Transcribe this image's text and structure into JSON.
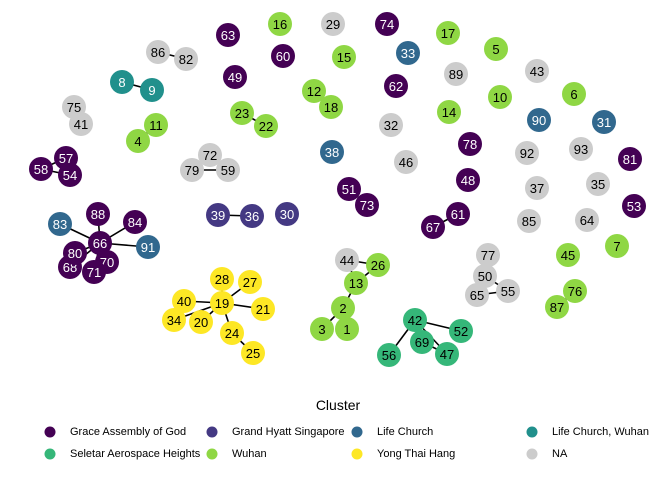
{
  "legend": {
    "title": "Cluster",
    "items": [
      {
        "label": "Grace Assembly of God",
        "color": "#440154"
      },
      {
        "label": "Grand Hyatt Singapore",
        "color": "#443983"
      },
      {
        "label": "Life Church",
        "color": "#31688E"
      },
      {
        "label": "Life Church, Wuhan",
        "color": "#21908C"
      },
      {
        "label": "Seletar Aerospace Heights",
        "color": "#35B779"
      },
      {
        "label": "Wuhan",
        "color": "#8FD744"
      },
      {
        "label": "Yong Thai Hang",
        "color": "#FDE725"
      },
      {
        "label": "NA",
        "color": "#CCCCCC"
      }
    ]
  },
  "nodes": [
    {
      "id": "1",
      "cluster": "Wuhan"
    },
    {
      "id": "2",
      "cluster": "Wuhan"
    },
    {
      "id": "3",
      "cluster": "Wuhan"
    },
    {
      "id": "4",
      "cluster": "Wuhan"
    },
    {
      "id": "5",
      "cluster": "Wuhan"
    },
    {
      "id": "6",
      "cluster": "Wuhan"
    },
    {
      "id": "7",
      "cluster": "Wuhan"
    },
    {
      "id": "8",
      "cluster": "Life Church, Wuhan"
    },
    {
      "id": "9",
      "cluster": "Life Church, Wuhan"
    },
    {
      "id": "10",
      "cluster": "Wuhan"
    },
    {
      "id": "11",
      "cluster": "Wuhan"
    },
    {
      "id": "12",
      "cluster": "Wuhan"
    },
    {
      "id": "13",
      "cluster": "Wuhan"
    },
    {
      "id": "14",
      "cluster": "Wuhan"
    },
    {
      "id": "15",
      "cluster": "Wuhan"
    },
    {
      "id": "16",
      "cluster": "Wuhan"
    },
    {
      "id": "17",
      "cluster": "Wuhan"
    },
    {
      "id": "18",
      "cluster": "Wuhan"
    },
    {
      "id": "19",
      "cluster": "Yong Thai Hang"
    },
    {
      "id": "20",
      "cluster": "Yong Thai Hang"
    },
    {
      "id": "21",
      "cluster": "Yong Thai Hang"
    },
    {
      "id": "22",
      "cluster": "Wuhan"
    },
    {
      "id": "23",
      "cluster": "Wuhan"
    },
    {
      "id": "24",
      "cluster": "Yong Thai Hang"
    },
    {
      "id": "25",
      "cluster": "Yong Thai Hang"
    },
    {
      "id": "26",
      "cluster": "Wuhan"
    },
    {
      "id": "27",
      "cluster": "Yong Thai Hang"
    },
    {
      "id": "28",
      "cluster": "Yong Thai Hang"
    },
    {
      "id": "29",
      "cluster": "NA"
    },
    {
      "id": "30",
      "cluster": "Grand Hyatt Singapore"
    },
    {
      "id": "31",
      "cluster": "Life Church"
    },
    {
      "id": "32",
      "cluster": "NA"
    },
    {
      "id": "33",
      "cluster": "Life Church"
    },
    {
      "id": "34",
      "cluster": "Yong Thai Hang"
    },
    {
      "id": "35",
      "cluster": "NA"
    },
    {
      "id": "36",
      "cluster": "Grand Hyatt Singapore"
    },
    {
      "id": "37",
      "cluster": "NA"
    },
    {
      "id": "38",
      "cluster": "Life Church"
    },
    {
      "id": "39",
      "cluster": "Grand Hyatt Singapore"
    },
    {
      "id": "40",
      "cluster": "Yong Thai Hang"
    },
    {
      "id": "41",
      "cluster": "NA"
    },
    {
      "id": "42",
      "cluster": "Seletar Aerospace Heights"
    },
    {
      "id": "43",
      "cluster": "NA"
    },
    {
      "id": "44",
      "cluster": "NA"
    },
    {
      "id": "45",
      "cluster": "Wuhan"
    },
    {
      "id": "46",
      "cluster": "NA"
    },
    {
      "id": "47",
      "cluster": "Seletar Aerospace Heights"
    },
    {
      "id": "48",
      "cluster": "Grace Assembly of God"
    },
    {
      "id": "49",
      "cluster": "Grace Assembly of God"
    },
    {
      "id": "50",
      "cluster": "NA"
    },
    {
      "id": "51",
      "cluster": "Grace Assembly of God"
    },
    {
      "id": "52",
      "cluster": "Seletar Aerospace Heights"
    },
    {
      "id": "53",
      "cluster": "Grace Assembly of God"
    },
    {
      "id": "54",
      "cluster": "Grace Assembly of God"
    },
    {
      "id": "55",
      "cluster": "NA"
    },
    {
      "id": "56",
      "cluster": "Seletar Aerospace Heights"
    },
    {
      "id": "57",
      "cluster": "Grace Assembly of God"
    },
    {
      "id": "58",
      "cluster": "Grace Assembly of God"
    },
    {
      "id": "59",
      "cluster": "NA"
    },
    {
      "id": "60",
      "cluster": "Grace Assembly of God"
    },
    {
      "id": "61",
      "cluster": "Grace Assembly of God"
    },
    {
      "id": "62",
      "cluster": "Grace Assembly of God"
    },
    {
      "id": "63",
      "cluster": "Grace Assembly of God"
    },
    {
      "id": "64",
      "cluster": "NA"
    },
    {
      "id": "65",
      "cluster": "NA"
    },
    {
      "id": "66",
      "cluster": "Grace Assembly of God"
    },
    {
      "id": "67",
      "cluster": "Grace Assembly of God"
    },
    {
      "id": "68",
      "cluster": "Grace Assembly of God"
    },
    {
      "id": "69",
      "cluster": "Seletar Aerospace Heights"
    },
    {
      "id": "70",
      "cluster": "Grace Assembly of God"
    },
    {
      "id": "71",
      "cluster": "Grace Assembly of God"
    },
    {
      "id": "72",
      "cluster": "NA"
    },
    {
      "id": "73",
      "cluster": "Grace Assembly of God"
    },
    {
      "id": "74",
      "cluster": "Grace Assembly of God"
    },
    {
      "id": "75",
      "cluster": "NA"
    },
    {
      "id": "76",
      "cluster": "Wuhan"
    },
    {
      "id": "77",
      "cluster": "NA"
    },
    {
      "id": "78",
      "cluster": "Grace Assembly of God"
    },
    {
      "id": "79",
      "cluster": "NA"
    },
    {
      "id": "80",
      "cluster": "Grace Assembly of God"
    },
    {
      "id": "81",
      "cluster": "Grace Assembly of God"
    },
    {
      "id": "82",
      "cluster": "NA"
    },
    {
      "id": "83",
      "cluster": "Life Church"
    },
    {
      "id": "84",
      "cluster": "Grace Assembly of God"
    },
    {
      "id": "85",
      "cluster": "NA"
    },
    {
      "id": "86",
      "cluster": "NA"
    },
    {
      "id": "87",
      "cluster": "Wuhan"
    },
    {
      "id": "88",
      "cluster": "Grace Assembly of God"
    },
    {
      "id": "89",
      "cluster": "NA"
    },
    {
      "id": "90",
      "cluster": "Life Church"
    },
    {
      "id": "91",
      "cluster": "Life Church"
    },
    {
      "id": "92",
      "cluster": "NA"
    },
    {
      "id": "93",
      "cluster": "NA"
    }
  ],
  "edges": [
    [
      "86",
      "82"
    ],
    [
      "8",
      "9"
    ],
    [
      "75",
      "41"
    ],
    [
      "11",
      "4"
    ],
    [
      "58",
      "57"
    ],
    [
      "58",
      "54"
    ],
    [
      "57",
      "54"
    ],
    [
      "23",
      "22"
    ],
    [
      "12",
      "18"
    ],
    [
      "72",
      "79"
    ],
    [
      "72",
      "59"
    ],
    [
      "79",
      "59"
    ],
    [
      "51",
      "73"
    ],
    [
      "67",
      "61"
    ],
    [
      "39",
      "36"
    ],
    [
      "66",
      "83"
    ],
    [
      "66",
      "88"
    ],
    [
      "66",
      "84"
    ],
    [
      "66",
      "91"
    ],
    [
      "66",
      "80"
    ],
    [
      "66",
      "68"
    ],
    [
      "66",
      "71"
    ],
    [
      "66",
      "70"
    ],
    [
      "19",
      "28"
    ],
    [
      "19",
      "27"
    ],
    [
      "19",
      "40"
    ],
    [
      "19",
      "21"
    ],
    [
      "19",
      "34"
    ],
    [
      "19",
      "20"
    ],
    [
      "19",
      "24"
    ],
    [
      "24",
      "25"
    ],
    [
      "40",
      "34"
    ],
    [
      "44",
      "26"
    ],
    [
      "44",
      "13"
    ],
    [
      "26",
      "13"
    ],
    [
      "13",
      "2"
    ],
    [
      "2",
      "3"
    ],
    [
      "2",
      "1"
    ],
    [
      "42",
      "69"
    ],
    [
      "42",
      "52"
    ],
    [
      "42",
      "47"
    ],
    [
      "42",
      "56"
    ],
    [
      "69",
      "47"
    ],
    [
      "77",
      "50"
    ],
    [
      "50",
      "65"
    ],
    [
      "50",
      "55"
    ],
    [
      "65",
      "55"
    ],
    [
      "76",
      "87"
    ]
  ]
}
